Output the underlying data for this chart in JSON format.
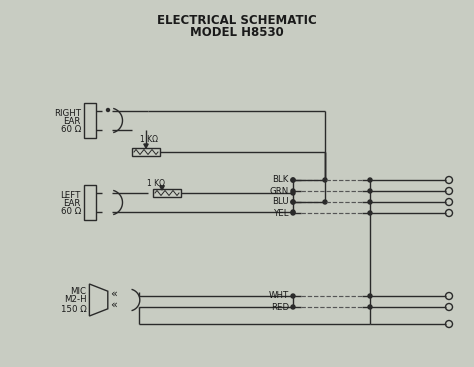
{
  "title_line1": "ELECTRICAL SCHEMATIC",
  "title_line2": "MODEL H8530",
  "bg_color": "#c8ccc2",
  "line_color": "#2a2a2a",
  "text_color": "#1a1a1a",
  "dashed_color": "#555555",
  "right_ear_label": [
    "RIGHT",
    "EAR",
    "60 Ω"
  ],
  "left_ear_label": [
    "LEFT",
    "EAR",
    "60 Ω"
  ],
  "mic_label": [
    "MIC",
    "M2-H",
    "150 Ω"
  ],
  "wire_labels_right": [
    "BLK",
    "GRN",
    "BLU",
    "YEL"
  ],
  "wire_labels_mic": [
    "WHT",
    "RED"
  ],
  "resistor_label": "1 KΩ",
  "figsize": [
    4.74,
    3.67
  ],
  "dpi": 100
}
